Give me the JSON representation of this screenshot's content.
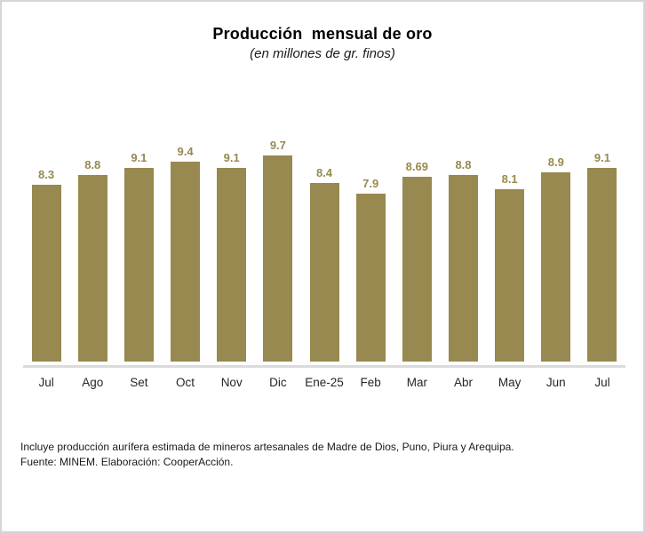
{
  "window": {
    "background": "#ffffff",
    "border_color": "#d6d6d6"
  },
  "chart_data": {
    "type": "bar",
    "title": "Producción  mensual de oro",
    "subtitle": "(en millones de gr. finos)",
    "categories": [
      "Jul",
      "Ago",
      "Set",
      "Oct",
      "Nov",
      "Dic",
      "Ene-25",
      "Feb",
      "Mar",
      "Abr",
      "May",
      "Jun",
      "Jul"
    ],
    "values": [
      8.3,
      8.8,
      9.1,
      9.4,
      9.1,
      9.7,
      8.4,
      7.9,
      8.69,
      8.8,
      8.1,
      8.9,
      9.1
    ],
    "value_labels": [
      "8.3",
      "8.8",
      "9.1",
      "9.4",
      "9.1",
      "9.7",
      "8.4",
      "7.9",
      "8.69",
      "8.8",
      "8.1",
      "8.9",
      "9.1"
    ],
    "xlabel": "",
    "ylabel": "",
    "ylim": [
      0,
      9.7
    ],
    "grid": false,
    "legend": false,
    "y_axis_visible": false,
    "bar_color": "#97894F",
    "value_label_color": "#97894F",
    "axis_line_color": "#DBDBDB"
  },
  "footer": {
    "note": "Incluye producción aurífera estimada de mineros artesanales de Madre de Dios, Puno, Piura y Arequipa.",
    "source": "Fuente: MINEM. Elaboración: CooperAcción."
  }
}
